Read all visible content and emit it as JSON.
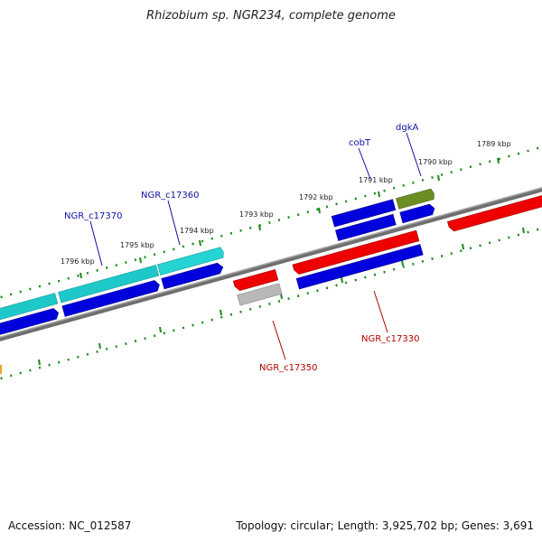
{
  "title": "Rhizobium sp. NGR234, complete genome",
  "footer": {
    "accession": "Accession: NC_012587",
    "summary": "Topology: circular; Length: 3,925,702 bp; Genes: 3,691"
  },
  "colors": {
    "backbone": "#777777",
    "tick": "#1a8a1a",
    "cds_forward": "#0000dd",
    "cds_reverse": "#ee0000",
    "gene_cyan": "#22cccc",
    "gene_olive": "#6b8e23",
    "gene_gray": "#b8b8b8",
    "label_blue": "#1010a0",
    "label_red": "#b00000"
  },
  "ticks": [
    {
      "label": "1796 kbp"
    },
    {
      "label": "1795 kbp"
    },
    {
      "label": "1794 kbp"
    },
    {
      "label": "1793 kbp"
    },
    {
      "label": "1792 kbp"
    },
    {
      "label": "1791 kbp"
    },
    {
      "label": "1790 kbp"
    },
    {
      "label": "1789 kbp"
    }
  ],
  "genes": {
    "forward": [
      {
        "name": "NGR_c17370"
      },
      {
        "name": "NGR_c17360"
      },
      {
        "name": "cobT"
      },
      {
        "name": "dgkA"
      }
    ],
    "reverse": [
      {
        "name": "NGR_c17350"
      },
      {
        "name": "NGR_c17330"
      }
    ]
  }
}
